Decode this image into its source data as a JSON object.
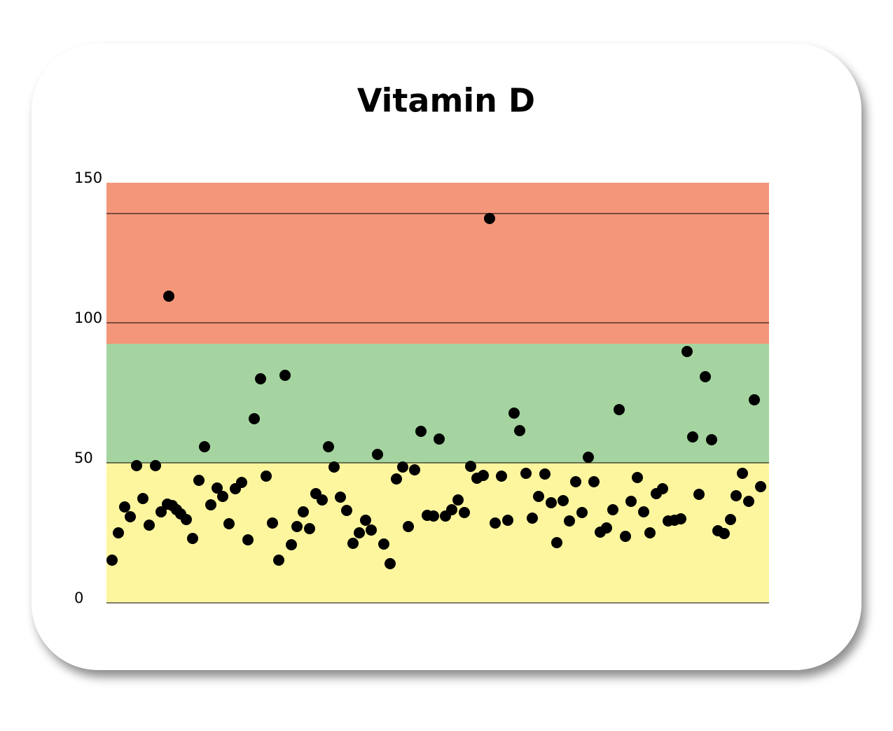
{
  "chart_data": {
    "type": "scatter",
    "title": "Vitamin D",
    "xlim": [
      0,
      946
    ],
    "ylim": [
      0,
      150
    ],
    "yticks": [
      0,
      50,
      100,
      150
    ],
    "grid": true,
    "hlines": [
      139
    ],
    "bands": [
      {
        "from": 0,
        "to": 50,
        "color": "#fef69e"
      },
      {
        "from": 50,
        "to": 92.5,
        "color": "#a5d4a0"
      },
      {
        "from": 92.5,
        "to": 150,
        "color": "#f4967a"
      }
    ],
    "series": [
      {
        "color": "#000000",
        "x": [
          8,
          17,
          26,
          34,
          43,
          52,
          61,
          70,
          78,
          87,
          89,
          94,
          100,
          106,
          114,
          123,
          132,
          140,
          149,
          158,
          166,
          175,
          184,
          193,
          202,
          211,
          220,
          228,
          237,
          246,
          255,
          264,
          272,
          281,
          290,
          299,
          308,
          317,
          325,
          334,
          343,
          352,
          361,
          370,
          378,
          387,
          396,
          405,
          414,
          423,
          431,
          440,
          449,
          458,
          467,
          475,
          484,
          493,
          502,
          511,
          520,
          529,
          538,
          547,
          555,
          564,
          573,
          582,
          590,
          599,
          608,
          617,
          626,
          635,
          643,
          652,
          661,
          670,
          679,
          688,
          696,
          705,
          714,
          723,
          732,
          741,
          749,
          758,
          767,
          776,
          785,
          794,
          802,
          811,
          820,
          829,
          837,
          846,
          855,
          864,
          873,
          882,
          891,
          899,
          908,
          917,
          925,
          934
        ],
        "values": [
          15.25,
          25,
          34.25,
          30.75,
          49,
          37.25,
          27.75,
          49,
          32.5,
          35.25,
          109.5,
          34.75,
          33.25,
          31.75,
          29.75,
          23,
          43.75,
          55.75,
          35,
          41,
          38,
          28.25,
          40.75,
          43,
          22.5,
          65.75,
          80,
          45.25,
          28.5,
          15.25,
          81.25,
          20.75,
          27.25,
          32.5,
          26.5,
          39,
          36.75,
          55.75,
          48.5,
          37.75,
          33,
          21.25,
          25,
          29.5,
          26,
          53,
          21,
          14,
          44.25,
          48.5,
          27.25,
          47.5,
          61.25,
          31.25,
          31,
          58.5,
          31,
          33.25,
          36.75,
          32.25,
          48.75,
          44.5,
          45.5,
          137.25,
          28.5,
          45.25,
          29.5,
          67.75,
          61.5,
          46.25,
          30.25,
          38,
          46,
          35.75,
          21.5,
          36.5,
          29.25,
          43.25,
          32.25,
          52,
          43.25,
          25.25,
          26.75,
          33.25,
          69,
          23.75,
          36.25,
          44.75,
          32.5,
          25,
          39,
          40.75,
          29.25,
          29.5,
          30,
          89.75,
          59.25,
          38.75,
          80.75,
          58.25,
          25.75,
          24.75,
          29.75,
          38.25,
          46.25,
          36.25,
          72.5,
          41.5
        ]
      }
    ]
  }
}
